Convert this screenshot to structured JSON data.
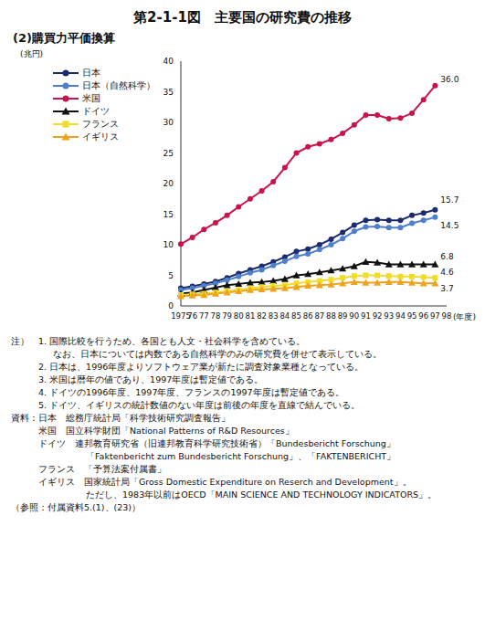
{
  "title": "第2-1-1図　主要国の研究費の推移",
  "subtitle": "(2)購買力平価換算",
  "chart_data": {
    "type": "line",
    "y_label": "(兆円)",
    "x_label": "(年度)",
    "categories": [
      "1975",
      "76",
      "77",
      "78",
      "79",
      "80",
      "81",
      "82",
      "83",
      "84",
      "85",
      "86",
      "87",
      "88",
      "89",
      "90",
      "91",
      "92",
      "93",
      "94",
      "95",
      "96",
      "97",
      "98"
    ],
    "ylim": [
      0,
      40
    ],
    "yticks": [
      0,
      5,
      10,
      15,
      20,
      25,
      30,
      35,
      40
    ],
    "grid": false,
    "legend": "upper left",
    "series": [
      {
        "name": "日本",
        "color": "#1c2a6e",
        "marker": "circle",
        "end_label": "15.7",
        "values": [
          2.9,
          3.2,
          3.6,
          4.0,
          4.6,
          5.3,
          5.9,
          6.5,
          7.2,
          8.0,
          8.9,
          9.3,
          10.0,
          10.9,
          12.0,
          13.2,
          14.0,
          14.1,
          14.0,
          14.0,
          14.8,
          15.2,
          15.7,
          null
        ]
      },
      {
        "name": "日本（自然科学）",
        "color": "#4f7fcc",
        "marker": "circle",
        "end_label": "14.5",
        "values": [
          2.6,
          2.9,
          3.3,
          3.7,
          4.2,
          4.8,
          5.4,
          5.9,
          6.6,
          7.3,
          8.1,
          8.5,
          9.2,
          10.0,
          11.0,
          12.2,
          12.9,
          13.0,
          12.8,
          12.8,
          13.5,
          14.0,
          14.5,
          null
        ]
      },
      {
        "name": "米国",
        "color": "#c8144a",
        "marker": "circle",
        "end_label": "36.0",
        "values": [
          10.1,
          11.2,
          12.5,
          13.6,
          14.8,
          16.2,
          17.5,
          18.8,
          20.3,
          22.6,
          25.0,
          26.0,
          26.5,
          27.2,
          28.2,
          29.6,
          31.2,
          31.2,
          30.6,
          30.7,
          31.5,
          33.7,
          36.0,
          null
        ]
      },
      {
        "name": "ドイツ",
        "color": "#111111",
        "marker": "triangle",
        "end_label": "6.8",
        "values": [
          2.0,
          2.2,
          2.6,
          3.0,
          3.4,
          3.6,
          3.8,
          3.9,
          4.1,
          4.4,
          5.0,
          5.2,
          5.5,
          5.8,
          6.1,
          6.5,
          7.2,
          7.1,
          6.8,
          6.8,
          6.8,
          6.8,
          6.8,
          null
        ]
      },
      {
        "name": "フランス",
        "color": "#f2dc2a",
        "marker": "square",
        "end_label": "4.6",
        "values": [
          1.8,
          1.9,
          2.0,
          2.2,
          2.4,
          2.6,
          2.9,
          3.1,
          3.3,
          3.4,
          3.7,
          3.9,
          4.1,
          4.3,
          4.6,
          4.9,
          5.0,
          5.0,
          4.9,
          4.8,
          4.8,
          4.7,
          4.6,
          null
        ]
      },
      {
        "name": "イギリス",
        "color": "#eea21e",
        "marker": "triangle",
        "end_label": "3.7",
        "values": [
          1.6,
          1.7,
          1.8,
          2.0,
          2.2,
          2.4,
          2.6,
          2.7,
          2.8,
          2.9,
          3.1,
          3.3,
          3.4,
          3.5,
          3.7,
          3.9,
          3.8,
          3.8,
          3.9,
          3.9,
          3.8,
          3.7,
          3.7,
          null
        ]
      }
    ]
  },
  "notes_label": "注）",
  "notes": [
    "1. 国際比較を行うため、各国とも人文・社会科学を含めている。",
    "なお、日本については内数である自然科学のみの研究費を併せて表示している。",
    "2. 日本は、1996年度よりソフトウェア業が新たに調査対象業種となっている。",
    "3. 米国は暦年の値であり、1997年度は暫定値である。",
    "4. ドイツの1996年度、1997年度、フランスの1997年度は暫定値である。",
    "5. ドイツ、イギリスの統計数値のない年度は前後の年度を直線で結んでいる。"
  ],
  "sources_label": "資料：",
  "sources": [
    "日本　総務庁統計局「科学技術研究調査報告」",
    "米国　国立科学財団「National Patterns of R&D Resources」",
    "ドイツ　連邦教育研究省（旧連邦教育科学研究技術省）「Bundesbericht Forschung」",
    "「Faktenbericht zum Bundesbericht Forschung」、「FAKTENBERICHT」",
    "フランス　「予算法案付属書」",
    "イギリス　国家統計局「Gross Domestic Expenditure on Reserch and Development」。",
    "ただし、1983年以前はOECD「MAIN SCIENCE AND TECHNOLOGY INDICATORS」。"
  ],
  "reference": "（参照：付属資料5.(1)、(23)）"
}
